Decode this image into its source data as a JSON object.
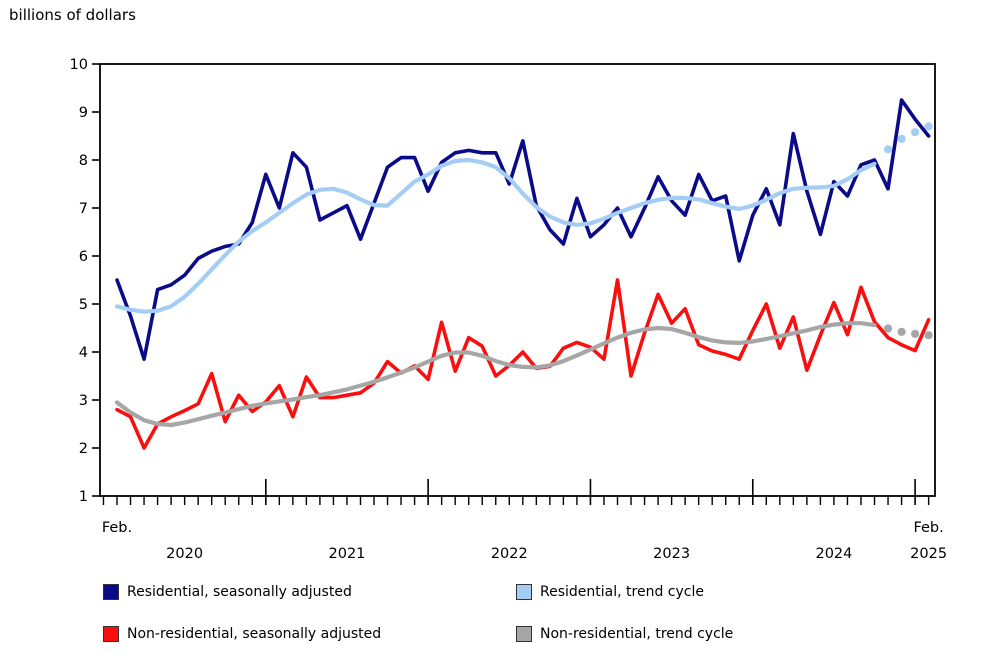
{
  "title": "billions of dollars",
  "chart_data": {
    "type": "line",
    "title": "billions of dollars",
    "xlabel": "",
    "ylabel": "billions of dollars",
    "ylim": [
      1,
      10
    ],
    "y_ticks": [
      1,
      2,
      3,
      4,
      5,
      6,
      7,
      8,
      9,
      10
    ],
    "grid": false,
    "legend_position": "bottom",
    "x_range": [
      "Feb 2020",
      "Feb 2025"
    ],
    "months_per_point": 1,
    "x_axis": {
      "start_month_label": "Feb.",
      "end_month_label": "Feb.",
      "year_labels": [
        "2020",
        "2021",
        "2022",
        "2023",
        "2024"
      ],
      "end_year_label": "2025"
    },
    "series": [
      {
        "name": "Residential, seasonally adjusted",
        "slug": "residential-sa",
        "role": "seasonal",
        "color": "#0b0b8a",
        "values": [
          5.5,
          4.75,
          3.85,
          5.3,
          5.4,
          5.6,
          5.95,
          6.1,
          6.2,
          6.25,
          6.7,
          7.7,
          7.0,
          8.15,
          7.85,
          6.75,
          6.9,
          7.05,
          6.35,
          7.1,
          7.85,
          8.05,
          8.05,
          7.35,
          7.95,
          8.15,
          8.2,
          8.15,
          8.15,
          7.5,
          8.4,
          7.05,
          6.55,
          6.25,
          7.2,
          6.4,
          6.65,
          7.0,
          6.4,
          7.0,
          7.65,
          7.15,
          6.85,
          7.7,
          7.15,
          7.25,
          5.9,
          6.85,
          7.4,
          6.65,
          8.55,
          7.35,
          6.45,
          7.55,
          7.25,
          7.9,
          8.0,
          7.4,
          9.25,
          8.85,
          8.5
        ]
      },
      {
        "name": "Residential, trend cycle",
        "slug": "residential-trend",
        "role": "trend",
        "color": "#a4cdf5",
        "dotted_from": 57,
        "values": [
          4.95,
          4.88,
          4.84,
          4.86,
          4.95,
          5.15,
          5.42,
          5.72,
          6.02,
          6.3,
          6.52,
          6.7,
          6.9,
          7.1,
          7.28,
          7.38,
          7.4,
          7.32,
          7.18,
          7.06,
          7.05,
          7.3,
          7.55,
          7.7,
          7.88,
          7.98,
          8.0,
          7.95,
          7.85,
          7.62,
          7.3,
          7.02,
          6.82,
          6.7,
          6.65,
          6.68,
          6.78,
          6.9,
          7.0,
          7.1,
          7.17,
          7.21,
          7.21,
          7.18,
          7.1,
          7.03,
          6.98,
          7.05,
          7.17,
          7.31,
          7.4,
          7.42,
          7.43,
          7.46,
          7.6,
          7.79,
          7.92,
          8.22,
          8.44,
          8.58,
          8.7
        ]
      },
      {
        "name": "Non-residential, seasonally adjusted",
        "slug": "non-residential-sa",
        "role": "seasonal",
        "color": "#fa0f0f",
        "values": [
          2.8,
          2.65,
          2.0,
          2.5,
          2.65,
          2.78,
          2.92,
          3.55,
          2.55,
          3.1,
          2.76,
          2.96,
          3.3,
          2.65,
          3.48,
          3.05,
          3.05,
          3.1,
          3.15,
          3.35,
          3.8,
          3.56,
          3.71,
          3.43,
          4.62,
          3.6,
          4.3,
          4.12,
          3.5,
          3.72,
          4.0,
          3.66,
          3.7,
          4.08,
          4.2,
          4.1,
          3.85,
          5.5,
          3.5,
          4.4,
          5.2,
          4.6,
          4.9,
          4.15,
          4.02,
          3.95,
          3.85,
          4.45,
          5.0,
          4.08,
          4.73,
          3.62,
          4.35,
          5.03,
          4.36,
          5.35,
          4.63,
          4.3,
          4.15,
          4.03,
          4.67
        ]
      },
      {
        "name": "Non-residential, trend cycle",
        "slug": "non-residential-trend",
        "role": "trend",
        "color": "#a6a6a6",
        "dotted_from": 57,
        "values": [
          2.95,
          2.74,
          2.58,
          2.5,
          2.48,
          2.53,
          2.6,
          2.67,
          2.74,
          2.81,
          2.88,
          2.93,
          2.97,
          3.01,
          3.06,
          3.1,
          3.16,
          3.22,
          3.3,
          3.38,
          3.47,
          3.57,
          3.68,
          3.8,
          3.92,
          3.99,
          3.99,
          3.92,
          3.81,
          3.73,
          3.69,
          3.68,
          3.72,
          3.81,
          3.93,
          4.05,
          4.18,
          4.3,
          4.4,
          4.47,
          4.5,
          4.48,
          4.4,
          4.31,
          4.24,
          4.2,
          4.19,
          4.22,
          4.27,
          4.33,
          4.39,
          4.45,
          4.52,
          4.57,
          4.6,
          4.6,
          4.56,
          4.49,
          4.42,
          4.38,
          4.35
        ]
      }
    ],
    "legend": [
      {
        "series": 0
      },
      {
        "series": 1
      },
      {
        "series": 2
      },
      {
        "series": 3
      }
    ]
  },
  "colors": {
    "axis": "#000000",
    "text": "#000000",
    "residential_sa": "#0b0b8a",
    "residential_trend": "#a4cdf5",
    "non_residential_sa": "#fa0f0f",
    "non_residential_trend": "#a6a6a6"
  }
}
